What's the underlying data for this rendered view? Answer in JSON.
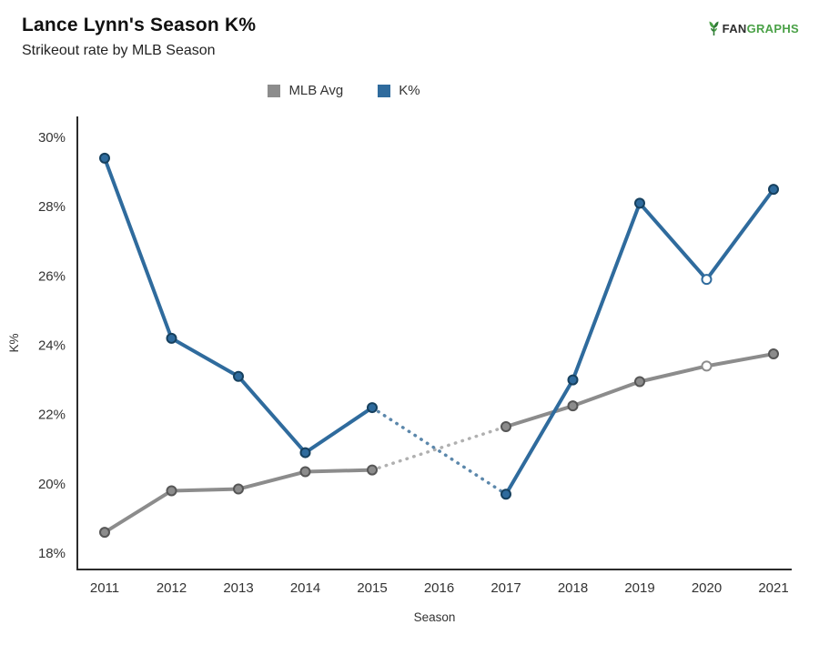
{
  "header": {
    "title": "Lance Lynn's Season K%",
    "subtitle": "Strikeout rate by MLB Season",
    "brand": {
      "prefix": "FAN",
      "suffix": "GRAPHS"
    }
  },
  "legend": [
    {
      "label": "MLB Avg",
      "color": "#8c8c8c"
    },
    {
      "label": "K%",
      "color": "#2f6b9d"
    }
  ],
  "chart_data": {
    "type": "line",
    "title": "Lance Lynn's Season K%",
    "subtitle": "Strikeout rate by MLB Season",
    "xlabel": "Season",
    "ylabel": "K%",
    "x": [
      2011,
      2012,
      2013,
      2014,
      2015,
      2016,
      2017,
      2018,
      2019,
      2020,
      2021
    ],
    "yticks": [
      18,
      20,
      22,
      24,
      26,
      28,
      30
    ],
    "ylim": [
      17.6,
      30.6
    ],
    "grid": false,
    "legend_position": "top-center",
    "note_missing_season": 2016,
    "series": [
      {
        "name": "MLB Avg",
        "color": "#8c8c8c",
        "dashed_color": "#b0b0b0",
        "point_fill": "#8c8c8c",
        "point_stroke": "#565656",
        "open_point_years": [
          2020
        ],
        "values": [
          18.6,
          19.8,
          19.85,
          20.35,
          20.4,
          null,
          21.65,
          22.25,
          22.95,
          23.4,
          23.75
        ]
      },
      {
        "name": "K%",
        "color": "#2f6b9d",
        "dashed_color": "#5b87ab",
        "point_fill": "#2f6b9d",
        "point_stroke": "#16405e",
        "open_point_years": [
          2020
        ],
        "values": [
          29.4,
          24.2,
          23.1,
          20.9,
          22.2,
          null,
          19.7,
          23.0,
          28.1,
          25.9,
          28.5
        ]
      }
    ]
  }
}
